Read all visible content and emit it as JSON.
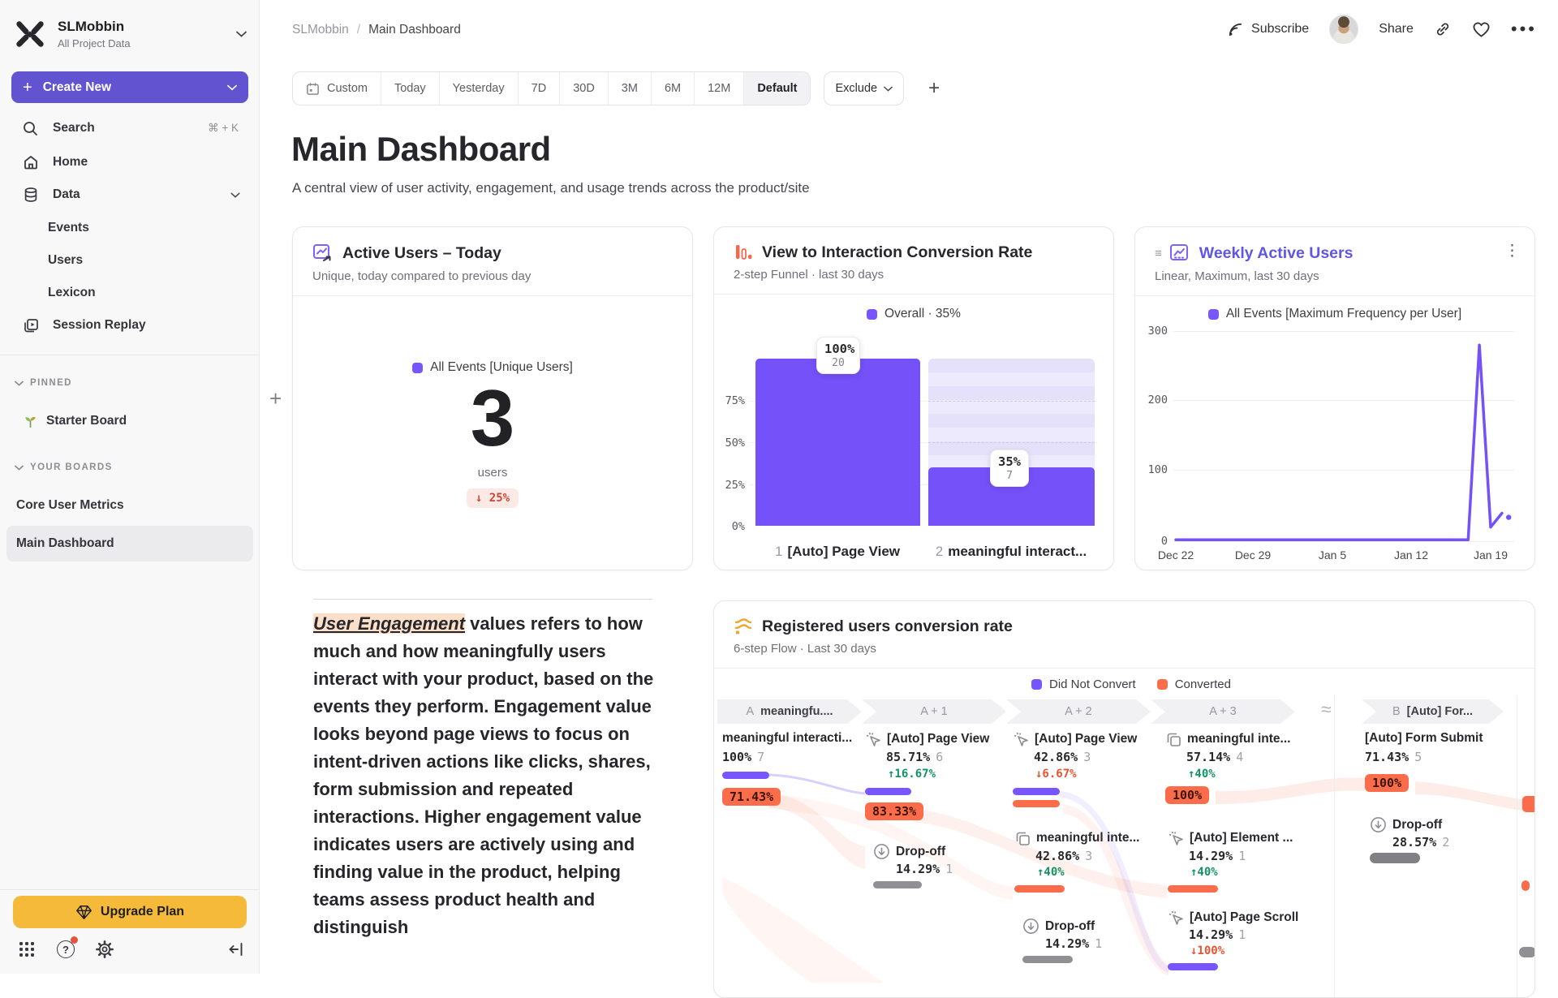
{
  "workspace": {
    "name": "SLMobbin",
    "subtitle": "All Project Data"
  },
  "sidebar": {
    "create_new": "Create New",
    "search": {
      "label": "Search",
      "shortcut": "⌘ + K"
    },
    "home": "Home",
    "data": "Data",
    "events": "Events",
    "users": "Users",
    "lexicon": "Lexicon",
    "session_replay": "Session Replay",
    "pinned_label": "PINNED",
    "starter_board": "Starter Board",
    "your_boards_label": "YOUR BOARDS",
    "core_user_metrics": "Core User Metrics",
    "main_dashboard": "Main Dashboard",
    "upgrade": "Upgrade Plan"
  },
  "topbar": {
    "breadcrumb_root": "SLMobbin",
    "breadcrumb_page": "Main Dashboard",
    "subscribe": "Subscribe",
    "share": "Share"
  },
  "daterange": {
    "tabs": [
      "Custom",
      "Today",
      "Yesterday",
      "7D",
      "30D",
      "3M",
      "6M",
      "12M",
      "Default"
    ],
    "active": "Default",
    "exclude": "Exclude"
  },
  "page": {
    "title": "Main Dashboard",
    "subtitle": "A central view of user activity, engagement, and usage trends across the product/site"
  },
  "active_users_card": {
    "title": "Active Users – Today",
    "subtitle": "Unique, today compared to previous day",
    "legend": "All Events [Unique Users]",
    "value": "3",
    "unit": "users",
    "delta": "↓ 25%"
  },
  "funnel_card": {
    "title": "View to Interaction Conversion Rate",
    "subtitle": "2-step Funnel · last 30 days",
    "legend": "Overall · 35%"
  },
  "wau_card": {
    "title": "Weekly Active Users",
    "subtitle": "Linear, Maximum, last 30 days",
    "legend": "All Events [Maximum Frequency per User]"
  },
  "note_card": {
    "highlight": "User Engagement",
    "body": " values refers to how much and how meaningfully users interact with your product, based on the events they perform. Engagement value looks beyond page views to focus on intent-driven actions like clicks, shares, form submission and repeated interactions. Higher engagement value indicates users are actively using and finding value in the product, helping teams assess product health and distinguish"
  },
  "flow_card": {
    "title": "Registered users conversion rate",
    "subtitle": "6-step Flow · Last 30 days",
    "legend": [
      {
        "label": "Did Not Convert"
      },
      {
        "label": "Converted"
      }
    ],
    "headers": {
      "a_prefix": "A",
      "a_label": "meaningfu....",
      "a1": "A + 1",
      "a2": "A + 2",
      "a3": "A + 3",
      "b_prefix": "B",
      "b_label": "[Auto] For..."
    },
    "cols": {
      "a": {
        "n1": {
          "title": "meaningful interacti...",
          "pct": "100%",
          "count": "7",
          "badge": "71.43%"
        }
      },
      "a1": {
        "n1": {
          "title": "[Auto] Page View",
          "pct": "85.71%",
          "count": "6",
          "delta": "↑16.67%",
          "badge": "83.33%"
        },
        "n2": {
          "title": "Drop-off",
          "pct": "14.29%",
          "count": "1"
        }
      },
      "a2": {
        "n1": {
          "title": "[Auto] Page View",
          "pct": "42.86%",
          "count": "3",
          "delta": "↓6.67%"
        },
        "n2": {
          "title": "meaningful inte...",
          "pct": "42.86%",
          "count": "3",
          "delta": "↑40%"
        },
        "n3": {
          "title": "Drop-off",
          "pct": "14.29%",
          "count": "1"
        }
      },
      "a3": {
        "n1": {
          "title": "meaningful inte...",
          "pct": "57.14%",
          "count": "4",
          "delta": "↑40%",
          "badge": "100%"
        },
        "n2": {
          "title": "[Auto] Element ...",
          "pct": "14.29%",
          "count": "1",
          "delta": "↑40%"
        },
        "n3": {
          "title": "[Auto] Page Scroll",
          "pct": "14.29%",
          "count": "1",
          "delta": "↓100%"
        }
      },
      "b": {
        "n1": {
          "title": "[Auto] Form Submit",
          "pct": "71.43%",
          "count": "5",
          "badge": "100%"
        },
        "n2": {
          "title": "Drop-off",
          "pct": "28.57%",
          "count": "2"
        }
      }
    }
  },
  "chart_data": [
    {
      "id": "active_users_today",
      "type": "metric",
      "title": "Active Users – Today",
      "series": "All Events [Unique Users]",
      "value": 3,
      "unit": "users",
      "change_pct": -25
    },
    {
      "id": "view_to_interaction_funnel",
      "type": "bar",
      "title": "View to Interaction Conversion Rate",
      "overall_conversion_pct": 35,
      "steps": [
        {
          "step": "1",
          "label": "[Auto] Page View",
          "pct": 100,
          "count": 20
        },
        {
          "step": "2",
          "label": "meaningful interact...",
          "pct": 35,
          "count": 7
        }
      ],
      "y_ticks": [
        "75%",
        "50%",
        "25%",
        "0%"
      ],
      "tooltips": [
        {
          "pct": "100%",
          "count": "20"
        },
        {
          "pct": "35%",
          "count": "7"
        }
      ],
      "ylim": [
        0,
        100
      ],
      "legend": "Overall · 35%"
    },
    {
      "id": "weekly_active_users",
      "type": "line",
      "title": "Weekly Active Users",
      "series": "All Events [Maximum Frequency per User]",
      "y_ticks": [
        "300",
        "200",
        "100",
        "0"
      ],
      "ylim": [
        0,
        300
      ],
      "x_ticks": [
        "Dec 22",
        "Dec 29",
        "Jan 5",
        "Jan 12",
        "Jan 19"
      ],
      "x_domain_days": 30,
      "line_points": [
        [
          0,
          2
        ],
        [
          26,
          2
        ],
        [
          27,
          280
        ],
        [
          28,
          20
        ],
        [
          29,
          40
        ]
      ],
      "end_dot": [
        29.6,
        34
      ]
    },
    {
      "id": "registered_users_flow",
      "type": "flow",
      "title": "Registered users conversion rate",
      "legend": [
        "Did Not Convert",
        "Converted"
      ],
      "columns": [
        {
          "header": "A meaningfu....",
          "nodes": [
            {
              "label": "meaningful interacti...",
              "pct": 100,
              "count": 7,
              "converted_pct": 71.43
            }
          ]
        },
        {
          "header": "A + 1",
          "nodes": [
            {
              "label": "[Auto] Page View",
              "pct": 85.71,
              "count": 6,
              "change_pct": 16.67,
              "converted_pct": 83.33
            },
            {
              "label": "Drop-off",
              "pct": 14.29,
              "count": 1
            }
          ]
        },
        {
          "header": "A + 2",
          "nodes": [
            {
              "label": "[Auto] Page View",
              "pct": 42.86,
              "count": 3,
              "change_pct": -6.67
            },
            {
              "label": "meaningful inte...",
              "pct": 42.86,
              "count": 3,
              "change_pct": 40
            },
            {
              "label": "Drop-off",
              "pct": 14.29,
              "count": 1
            }
          ]
        },
        {
          "header": "A + 3",
          "nodes": [
            {
              "label": "meaningful inte...",
              "pct": 57.14,
              "count": 4,
              "change_pct": 40,
              "converted_pct": 100
            },
            {
              "label": "[Auto] Element ...",
              "pct": 14.29,
              "count": 1,
              "change_pct": 40
            },
            {
              "label": "[Auto] Page Scroll",
              "pct": 14.29,
              "count": 1,
              "change_pct": -100
            }
          ]
        },
        {
          "header": "B [Auto] For...",
          "nodes": [
            {
              "label": "[Auto] Form Submit",
              "pct": 71.43,
              "count": 5,
              "converted_pct": 100
            },
            {
              "label": "Drop-off",
              "pct": 28.57,
              "count": 2
            }
          ]
        }
      ]
    }
  ]
}
